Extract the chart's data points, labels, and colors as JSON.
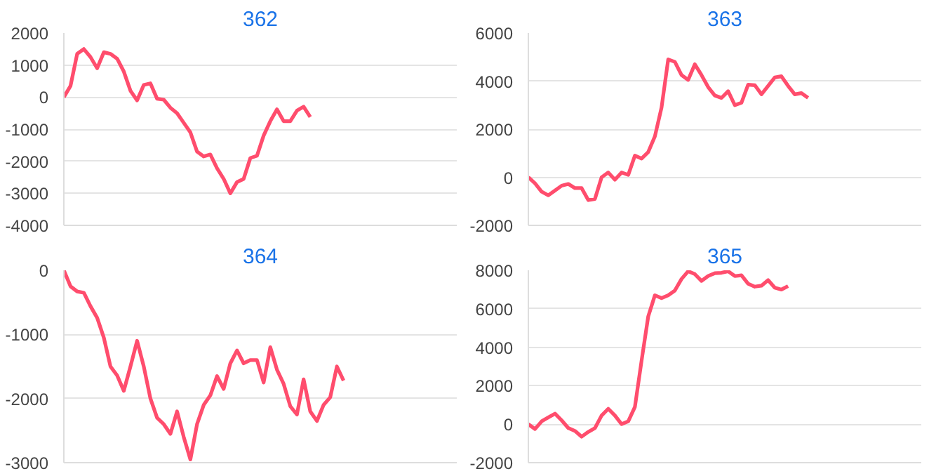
{
  "chart_data": [
    {
      "type": "line",
      "title": "362",
      "grid": "y",
      "tick_labels": "y",
      "ylim": [
        -4000,
        2000
      ],
      "yticks": [
        -4000,
        -3000,
        -2000,
        -1000,
        0,
        1000,
        2000
      ],
      "categories": [
        null,
        null,
        null,
        null,
        null,
        null,
        null,
        null,
        null,
        null,
        null,
        null,
        null,
        null,
        null,
        null,
        null,
        null,
        null,
        null,
        null,
        null,
        null,
        null,
        null,
        null,
        null,
        null,
        null,
        null,
        null,
        null,
        null,
        null,
        null,
        null,
        null,
        null,
        null,
        null,
        null,
        null,
        null,
        null,
        null,
        null,
        null,
        null,
        null,
        null,
        null,
        null,
        null,
        null,
        null,
        null,
        null,
        null,
        null,
        null
      ],
      "series": [
        {
          "color": "#ff4d6d",
          "values": [
            0,
            350,
            1350,
            1500,
            1250,
            900,
            1400,
            1350,
            1200,
            800,
            200,
            -100,
            380,
            430,
            -50,
            -80,
            -330,
            -500,
            -800,
            -1100,
            -1700,
            -1850,
            -1790,
            -2220,
            -2550,
            -3000,
            -2650,
            -2550,
            -1900,
            -1830,
            -1200,
            -750,
            -380,
            -750,
            -750,
            -420,
            -300,
            -620,
            null,
            null,
            null,
            null,
            null,
            null,
            null,
            null,
            null,
            null,
            null,
            null,
            null,
            null,
            null,
            null,
            null,
            null,
            null,
            null,
            null,
            null
          ]
        }
      ]
    },
    {
      "type": "line",
      "title": "363",
      "grid": "y",
      "tick_labels": "y",
      "ylim": [
        -2000,
        6000
      ],
      "yticks": [
        -2000,
        0,
        2000,
        4000,
        6000
      ],
      "categories": [
        null,
        null,
        null,
        null,
        null,
        null,
        null,
        null,
        null,
        null,
        null,
        null,
        null,
        null,
        null,
        null,
        null,
        null,
        null,
        null,
        null,
        null,
        null,
        null,
        null,
        null,
        null,
        null,
        null,
        null,
        null,
        null,
        null,
        null,
        null,
        null,
        null,
        null,
        null,
        null,
        null,
        null,
        null,
        null,
        null,
        null,
        null,
        null,
        null,
        null,
        null,
        null,
        null,
        null,
        null,
        null,
        null,
        null,
        null,
        null
      ],
      "series": [
        {
          "color": "#ff4d6d",
          "values": [
            0,
            -250,
            -600,
            -750,
            -550,
            -350,
            -280,
            -450,
            -450,
            -950,
            -900,
            0,
            200,
            -100,
            200,
            100,
            900,
            780,
            1050,
            1700,
            2900,
            4900,
            4800,
            4250,
            4050,
            4700,
            4250,
            3750,
            3400,
            3300,
            3580,
            3000,
            3100,
            3850,
            3830,
            3450,
            3800,
            4150,
            4200,
            3800,
            3450,
            3500,
            3300,
            null,
            null,
            null,
            null,
            null,
            null,
            null,
            null,
            null,
            null,
            null,
            null,
            null,
            null,
            null,
            null,
            null
          ]
        }
      ]
    },
    {
      "type": "line",
      "title": "364",
      "grid": "y",
      "tick_labels": "y",
      "ylim": [
        -3000,
        0
      ],
      "yticks": [
        -3000,
        -2000,
        -1000,
        0
      ],
      "categories": [
        null,
        null,
        null,
        null,
        null,
        null,
        null,
        null,
        null,
        null,
        null,
        null,
        null,
        null,
        null,
        null,
        null,
        null,
        null,
        null,
        null,
        null,
        null,
        null,
        null,
        null,
        null,
        null,
        null,
        null,
        null,
        null,
        null,
        null,
        null,
        null,
        null,
        null,
        null,
        null,
        null,
        null,
        null,
        null,
        null,
        null,
        null,
        null,
        null,
        null,
        null,
        null,
        null,
        null,
        null,
        null,
        null,
        null,
        null,
        null
      ],
      "series": [
        {
          "color": "#ff4d6d",
          "values": [
            0,
            -250,
            -330,
            -350,
            -560,
            -740,
            -1050,
            -1500,
            -1640,
            -1880,
            -1500,
            -1100,
            -1500,
            -2000,
            -2300,
            -2400,
            -2550,
            -2200,
            -2600,
            -2950,
            -2400,
            -2100,
            -1950,
            -1650,
            -1850,
            -1450,
            -1250,
            -1450,
            -1400,
            -1400,
            -1750,
            -1200,
            -1550,
            -1770,
            -2120,
            -2250,
            -1700,
            -2200,
            -2350,
            -2100,
            -1980,
            -1500,
            -1720,
            null,
            null,
            null,
            null,
            null,
            null,
            null,
            null,
            null,
            null,
            null,
            null,
            null,
            null,
            null,
            null,
            null
          ]
        }
      ]
    },
    {
      "type": "line",
      "title": "365",
      "grid": "y",
      "tick_labels": "y",
      "ylim": [
        -2000,
        8000
      ],
      "yticks": [
        -2000,
        0,
        2000,
        4000,
        6000,
        8000
      ],
      "categories": [
        null,
        null,
        null,
        null,
        null,
        null,
        null,
        null,
        null,
        null,
        null,
        null,
        null,
        null,
        null,
        null,
        null,
        null,
        null,
        null,
        null,
        null,
        null,
        null,
        null,
        null,
        null,
        null,
        null,
        null,
        null,
        null,
        null,
        null,
        null,
        null,
        null,
        null,
        null,
        null,
        null,
        null,
        null,
        null,
        null,
        null,
        null,
        null,
        null,
        null,
        null,
        null,
        null,
        null,
        null,
        null,
        null,
        null,
        null,
        null
      ],
      "series": [
        {
          "color": "#ff4d6d",
          "values": [
            0,
            -250,
            150,
            350,
            550,
            200,
            -200,
            -350,
            -650,
            -400,
            -200,
            450,
            800,
            450,
            0,
            150,
            900,
            3300,
            5600,
            6700,
            6550,
            6700,
            6950,
            7550,
            7950,
            7800,
            7450,
            7700,
            7850,
            7870,
            7950,
            7700,
            7740,
            7300,
            7150,
            7200,
            7490,
            7100,
            7000,
            7180,
            null,
            null,
            null,
            null,
            null,
            null,
            null,
            null,
            null,
            null,
            null,
            null,
            null,
            null,
            null,
            null,
            null,
            null,
            null,
            null
          ]
        }
      ]
    }
  ]
}
